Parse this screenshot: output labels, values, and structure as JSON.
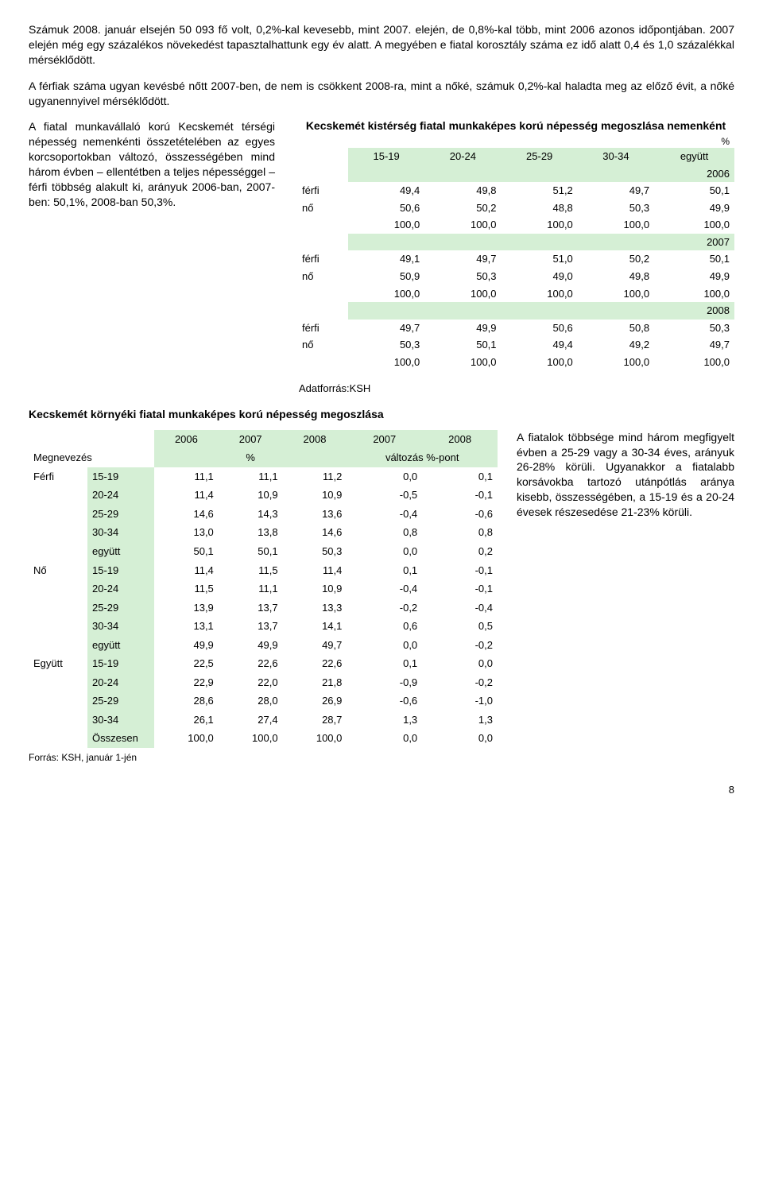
{
  "para1": "Számuk 2008. január elsején 50 093 fő volt, 0,2%-kal kevesebb, mint 2007. elején, de 0,8%-kal több, mint 2006 azonos időpontjában. 2007 elején még egy százalékos növekedést tapasztalhattunk egy év alatt. A megyében e fiatal korosztály száma ez idő alatt 0,4 és 1,0 százalékkal mérséklődött.",
  "para2": "A férfiak száma ugyan kevésbé nőtt 2007-ben, de nem is csökkent 2008-ra, mint a nőké, számuk 0,2%-kal haladta meg az előző évit, a nőké ugyanennyivel mérséklődött.",
  "leftColPara": "A fiatal munkavállaló korú Kecskemét térségi népesség nemenkénti összetételében az egyes korcsoportokban változó, összességében mind három évben – ellentétben a teljes népességgel – férfi többség alakult ki, arányuk 2006-ban, 2007-ben: 50,1%, 2008-ban 50,3%.",
  "tbl1": {
    "title": "Kecskemét kistérség fiatal munkaképes korú népesség megoszlása nemenként",
    "pctLabel": "%",
    "colHeaders": [
      "15-19",
      "20-24",
      "25-29",
      "30-34",
      "együtt"
    ],
    "rowLabels": {
      "male": "férfi",
      "female": "nő"
    },
    "years": [
      "2006",
      "2007",
      "2008"
    ],
    "data": {
      "2006": {
        "male": [
          "49,4",
          "49,8",
          "51,2",
          "49,7",
          "50,1"
        ],
        "female": [
          "50,6",
          "50,2",
          "48,8",
          "50,3",
          "49,9"
        ],
        "total": [
          "100,0",
          "100,0",
          "100,0",
          "100,0",
          "100,0"
        ]
      },
      "2007": {
        "male": [
          "49,1",
          "49,7",
          "51,0",
          "50,2",
          "50,1"
        ],
        "female": [
          "50,9",
          "50,3",
          "49,0",
          "49,8",
          "49,9"
        ],
        "total": [
          "100,0",
          "100,0",
          "100,0",
          "100,0",
          "100,0"
        ]
      },
      "2008": {
        "male": [
          "49,7",
          "49,9",
          "50,6",
          "50,8",
          "50,3"
        ],
        "female": [
          "50,3",
          "50,1",
          "49,4",
          "49,2",
          "49,7"
        ],
        "total": [
          "100,0",
          "100,0",
          "100,0",
          "100,0",
          "100,0"
        ]
      }
    }
  },
  "source1": "Adatforrás:KSH",
  "sectionTitle": "Kecskemét környéki fiatal munkaképes korú népesség megoszlása",
  "tbl2": {
    "megnevezes": "Megnevezés",
    "topYears": [
      "2006",
      "2007",
      "2008",
      "2007",
      "2008"
    ],
    "subHeaders": [
      "%",
      "változás %-pont"
    ],
    "groups": [
      {
        "label": "Férfi",
        "rows": [
          {
            "age": "15-19",
            "v": [
              "11,1",
              "11,1",
              "11,2",
              "0,0",
              "0,1"
            ]
          },
          {
            "age": "20-24",
            "v": [
              "11,4",
              "10,9",
              "10,9",
              "-0,5",
              "-0,1"
            ]
          },
          {
            "age": "25-29",
            "v": [
              "14,6",
              "14,3",
              "13,6",
              "-0,4",
              "-0,6"
            ]
          },
          {
            "age": "30-34",
            "v": [
              "13,0",
              "13,8",
              "14,6",
              "0,8",
              "0,8"
            ]
          },
          {
            "age": "együtt",
            "v": [
              "50,1",
              "50,1",
              "50,3",
              "0,0",
              "0,2"
            ]
          }
        ]
      },
      {
        "label": "Nő",
        "rows": [
          {
            "age": "15-19",
            "v": [
              "11,4",
              "11,5",
              "11,4",
              "0,1",
              "-0,1"
            ]
          },
          {
            "age": "20-24",
            "v": [
              "11,5",
              "11,1",
              "10,9",
              "-0,4",
              "-0,1"
            ]
          },
          {
            "age": "25-29",
            "v": [
              "13,9",
              "13,7",
              "13,3",
              "-0,2",
              "-0,4"
            ]
          },
          {
            "age": "30-34",
            "v": [
              "13,1",
              "13,7",
              "14,1",
              "0,6",
              "0,5"
            ]
          },
          {
            "age": "együtt",
            "v": [
              "49,9",
              "49,9",
              "49,7",
              "0,0",
              "-0,2"
            ]
          }
        ]
      },
      {
        "label": "Együtt",
        "rows": [
          {
            "age": "15-19",
            "v": [
              "22,5",
              "22,6",
              "22,6",
              "0,1",
              "0,0"
            ]
          },
          {
            "age": "20-24",
            "v": [
              "22,9",
              "22,0",
              "21,8",
              "-0,9",
              "-0,2"
            ]
          },
          {
            "age": "25-29",
            "v": [
              "28,6",
              "28,0",
              "26,9",
              "-0,6",
              "-1,0"
            ]
          },
          {
            "age": "30-34",
            "v": [
              "26,1",
              "27,4",
              "28,7",
              "1,3",
              "1,3"
            ]
          },
          {
            "age": "Összesen",
            "v": [
              "100,0",
              "100,0",
              "100,0",
              "0,0",
              "0,0"
            ]
          }
        ]
      }
    ]
  },
  "rightColPara": "A fiatalok többsége mind három megfigyelt évben a 25-29 vagy a 30-34 éves, arányuk 26-28% körüli. Ugyanakkor a fiatalabb korsávokba tartozó utánpótlás aránya kisebb, összességében, a 15-19 és a 20-24 évesek részesedése 21-23% körüli.",
  "footnote": "Forrás: KSH, január 1-jén",
  "pageNum": "8",
  "colors": {
    "greenBg": "#d5efd5"
  }
}
